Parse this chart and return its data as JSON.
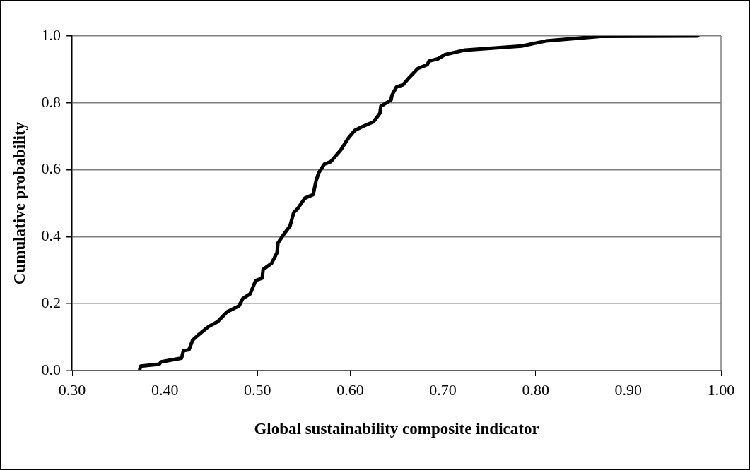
{
  "chart_data": {
    "type": "line",
    "xlabel": "Global sustainability composite indicator",
    "ylabel": "Cumulative probability",
    "series": [
      {
        "color": "#000000",
        "x": [
          0.373,
          0.374,
          0.394,
          0.396,
          0.418,
          0.42,
          0.426,
          0.43,
          0.436,
          0.447,
          0.457,
          0.467,
          0.48,
          0.484,
          0.492,
          0.498,
          0.505,
          0.506,
          0.515,
          0.521,
          0.522,
          0.529,
          0.535,
          0.539,
          0.543,
          0.551,
          0.56,
          0.563,
          0.566,
          0.572,
          0.579,
          0.59,
          0.598,
          0.605,
          0.613,
          0.625,
          0.632,
          0.633,
          0.644,
          0.645,
          0.65,
          0.657,
          0.663,
          0.673,
          0.683,
          0.685,
          0.695,
          0.702,
          0.724,
          0.785,
          0.811,
          0.87,
          0.975
        ],
        "values": [
          0.004,
          0.013,
          0.019,
          0.026,
          0.037,
          0.059,
          0.062,
          0.091,
          0.106,
          0.131,
          0.146,
          0.175,
          0.193,
          0.215,
          0.229,
          0.269,
          0.276,
          0.302,
          0.32,
          0.352,
          0.381,
          0.41,
          0.432,
          0.472,
          0.483,
          0.515,
          0.526,
          0.566,
          0.591,
          0.617,
          0.624,
          0.66,
          0.695,
          0.718,
          0.729,
          0.743,
          0.769,
          0.79,
          0.809,
          0.823,
          0.848,
          0.854,
          0.874,
          0.903,
          0.914,
          0.925,
          0.932,
          0.944,
          0.958,
          0.97,
          0.985,
          0.999,
          1.0
        ]
      }
    ],
    "xlim": [
      0.3,
      1.0
    ],
    "xticks": [
      {
        "value": 0.3,
        "label": "0.30"
      },
      {
        "value": 0.4,
        "label": "0.40"
      },
      {
        "value": 0.5,
        "label": "0.50"
      },
      {
        "value": 0.6,
        "label": "0.60"
      },
      {
        "value": 0.7,
        "label": "0.70"
      },
      {
        "value": 0.8,
        "label": "0.80"
      },
      {
        "value": 0.9,
        "label": "0.90"
      },
      {
        "value": 1.0,
        "label": "1.00"
      }
    ],
    "ylim": [
      0,
      1
    ],
    "yticks": [
      {
        "value": 0,
        "label": "0.0"
      },
      {
        "value": 0.2,
        "label": "0.2"
      },
      {
        "value": 0.4,
        "label": "0.4"
      },
      {
        "value": 0.6,
        "label": "0.6"
      },
      {
        "value": 0.8,
        "label": "0.8"
      },
      {
        "value": 1.0,
        "label": "1.0"
      }
    ],
    "grid": "y",
    "legend": false,
    "marker": "none",
    "line_style": "solid"
  }
}
